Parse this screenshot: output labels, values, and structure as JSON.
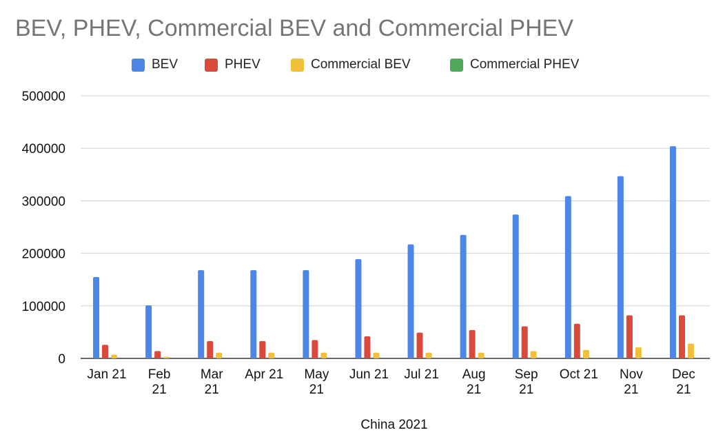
{
  "chart_data": {
    "type": "bar",
    "title": "BEV, PHEV, Commercial BEV and Commercial PHEV",
    "xlabel": "China 2021",
    "ylabel": "",
    "ylim": [
      0,
      500000
    ],
    "yticks": [
      0,
      100000,
      200000,
      300000,
      400000,
      500000
    ],
    "grid": true,
    "legend_position": "top",
    "categories": [
      [
        "Jan 21"
      ],
      [
        "Feb",
        "21"
      ],
      [
        "Mar",
        "21"
      ],
      [
        "Apr 21"
      ],
      [
        "May",
        "21"
      ],
      [
        "Jun 21"
      ],
      [
        "Jul 21"
      ],
      [
        "Aug",
        "21"
      ],
      [
        "Sep",
        "21"
      ],
      [
        "Oct 21"
      ],
      [
        "Nov",
        "21"
      ],
      [
        "Dec",
        "21"
      ]
    ],
    "series": [
      {
        "name": "BEV",
        "color": "#4e86e8",
        "values": [
          155000,
          101000,
          168000,
          168000,
          168000,
          189000,
          217000,
          235000,
          274000,
          309000,
          347000,
          404000
        ]
      },
      {
        "name": "PHEV",
        "color": "#d94a3c",
        "values": [
          26000,
          14000,
          33000,
          33000,
          35000,
          42000,
          49000,
          54000,
          61000,
          66000,
          82000,
          82000
        ]
      },
      {
        "name": "Commercial BEV",
        "color": "#f2bf3a",
        "values": [
          7000,
          3000,
          11000,
          11000,
          11000,
          11000,
          11000,
          11000,
          14000,
          16000,
          21000,
          28000
        ]
      },
      {
        "name": "Commercial PHEV",
        "color": "#4ea85a",
        "values": [
          0,
          0,
          0,
          0,
          0,
          0,
          0,
          0,
          0,
          0,
          0,
          0
        ]
      }
    ]
  }
}
